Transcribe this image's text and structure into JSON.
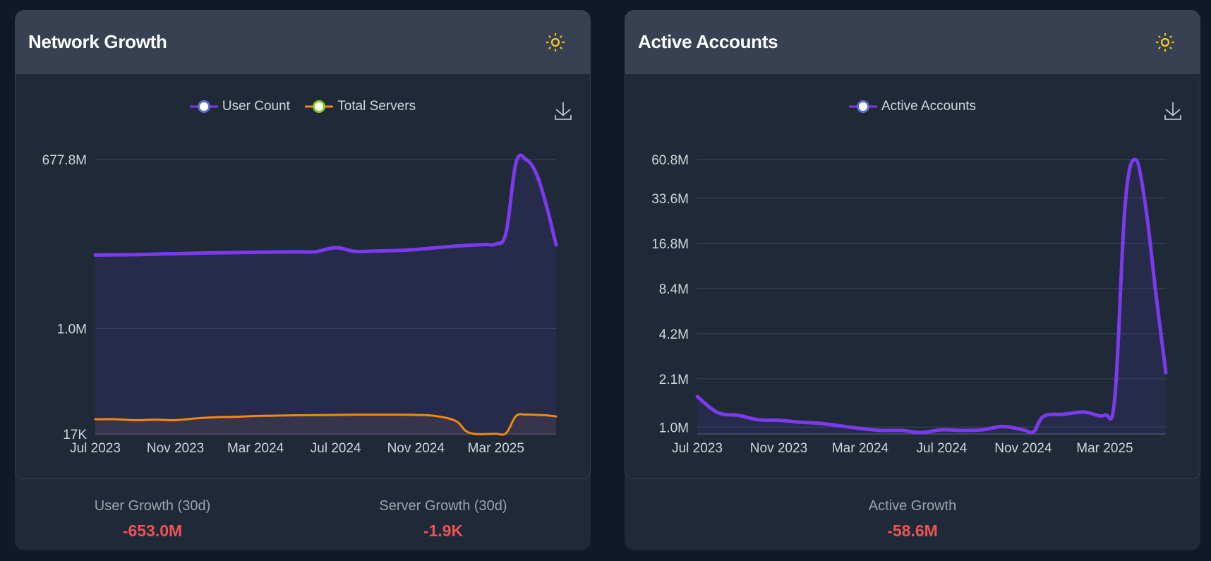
{
  "colors": {
    "purple": "#7c3aed",
    "orange": "#f5880f",
    "legend_ring_purple": "#5b6bd6",
    "legend_ring_green": "#84cc16",
    "negative": "#f05252",
    "sun": "#facc15"
  },
  "cards": [
    {
      "title": "Network Growth",
      "theme_icon": "sun-icon",
      "download_icon": "download-icon",
      "legend": [
        {
          "label": "User Count",
          "color": "#7c3aed"
        },
        {
          "label": "Total Servers",
          "color": "#f5880f"
        }
      ],
      "stats": [
        {
          "label": "User Growth (30d)",
          "value": "-653.0M"
        },
        {
          "label": "Server Growth (30d)",
          "value": "-1.9K"
        }
      ]
    },
    {
      "title": "Active Accounts",
      "theme_icon": "sun-icon",
      "download_icon": "download-icon",
      "legend": [
        {
          "label": "Active Accounts",
          "color": "#7c3aed"
        }
      ],
      "stats": [
        {
          "label": "Active Growth",
          "value": "-58.6M"
        }
      ]
    }
  ],
  "chart_data": [
    {
      "type": "area",
      "title": "Network Growth",
      "yscale": "log",
      "ylim": [
        17000,
        677800000
      ],
      "y_ticks": [
        "17K",
        "1.0M",
        "677.8M"
      ],
      "y_tick_values": [
        17000,
        1000000,
        677800000
      ],
      "x_range": [
        "2023-07",
        "2025-07"
      ],
      "x_ticks": [
        "Jul 2023",
        "Nov 2023",
        "Mar 2024",
        "Jul 2024",
        "Nov 2024",
        "Mar 2025"
      ],
      "x": [
        0,
        1,
        2,
        3,
        4,
        5,
        6,
        7,
        8,
        9,
        10,
        11,
        12,
        13,
        14,
        15,
        16,
        17,
        18,
        18.5,
        19,
        19.5,
        20,
        20.5,
        21,
        21.5,
        22,
        22.5,
        23
      ],
      "x_unit": "months since Jul 2023",
      "grid": true,
      "legend_position": "top",
      "series": [
        {
          "name": "User Count",
          "color": "#7c3aed",
          "values": [
            17000000,
            17100000,
            17200000,
            17600000,
            17900000,
            18200000,
            18500000,
            18700000,
            18900000,
            19100000,
            19200000,
            19300000,
            22500000,
            19500000,
            19800000,
            20200000,
            21000000,
            22500000,
            24000000,
            24500000,
            25000000,
            25500000,
            26000000,
            40000000,
            600000000,
            677800000,
            400000000,
            120000000,
            25000000
          ]
        },
        {
          "name": "Total Servers",
          "color": "#f5880f",
          "values": [
            30000,
            30000,
            29000,
            29500,
            29000,
            31000,
            32500,
            33000,
            34000,
            34500,
            35000,
            35200,
            35500,
            35800,
            35800,
            35800,
            35500,
            34000,
            28000,
            19000,
            17000,
            17000,
            17200,
            17500,
            34000,
            36000,
            35500,
            35000,
            33500
          ]
        }
      ]
    },
    {
      "type": "area",
      "title": "Active Accounts",
      "yscale": "log",
      "ylim": [
        900000,
        60800000
      ],
      "y_ticks": [
        "1.0M",
        "2.1M",
        "4.2M",
        "8.4M",
        "16.8M",
        "33.6M",
        "60.8M"
      ],
      "y_tick_values": [
        1000000,
        2100000,
        4200000,
        8400000,
        16800000,
        33600000,
        60800000
      ],
      "x_range": [
        "2023-07",
        "2025-07"
      ],
      "x_ticks": [
        "Jul 2023",
        "Nov 2023",
        "Mar 2024",
        "Jul 2024",
        "Nov 2024",
        "Mar 2025"
      ],
      "x": [
        0,
        1,
        2,
        3,
        4,
        5,
        6,
        7,
        8,
        9,
        10,
        11,
        12,
        13,
        14,
        15,
        16,
        16.5,
        17,
        18,
        19,
        20,
        20.5,
        21,
        21.5,
        22,
        22.5,
        23
      ],
      "x_unit": "months since Jul 2023",
      "grid": true,
      "legend_position": "top",
      "series": [
        {
          "name": "Active Accounts",
          "color": "#7c3aed",
          "values": [
            1600000,
            1250000,
            1200000,
            1120000,
            1110000,
            1080000,
            1060000,
            1020000,
            980000,
            950000,
            950000,
            920000,
            960000,
            950000,
            960000,
            1010000,
            960000,
            930000,
            1180000,
            1220000,
            1260000,
            1200000,
            1600000,
            30000000,
            60800000,
            30000000,
            8000000,
            2300000
          ]
        }
      ]
    }
  ]
}
